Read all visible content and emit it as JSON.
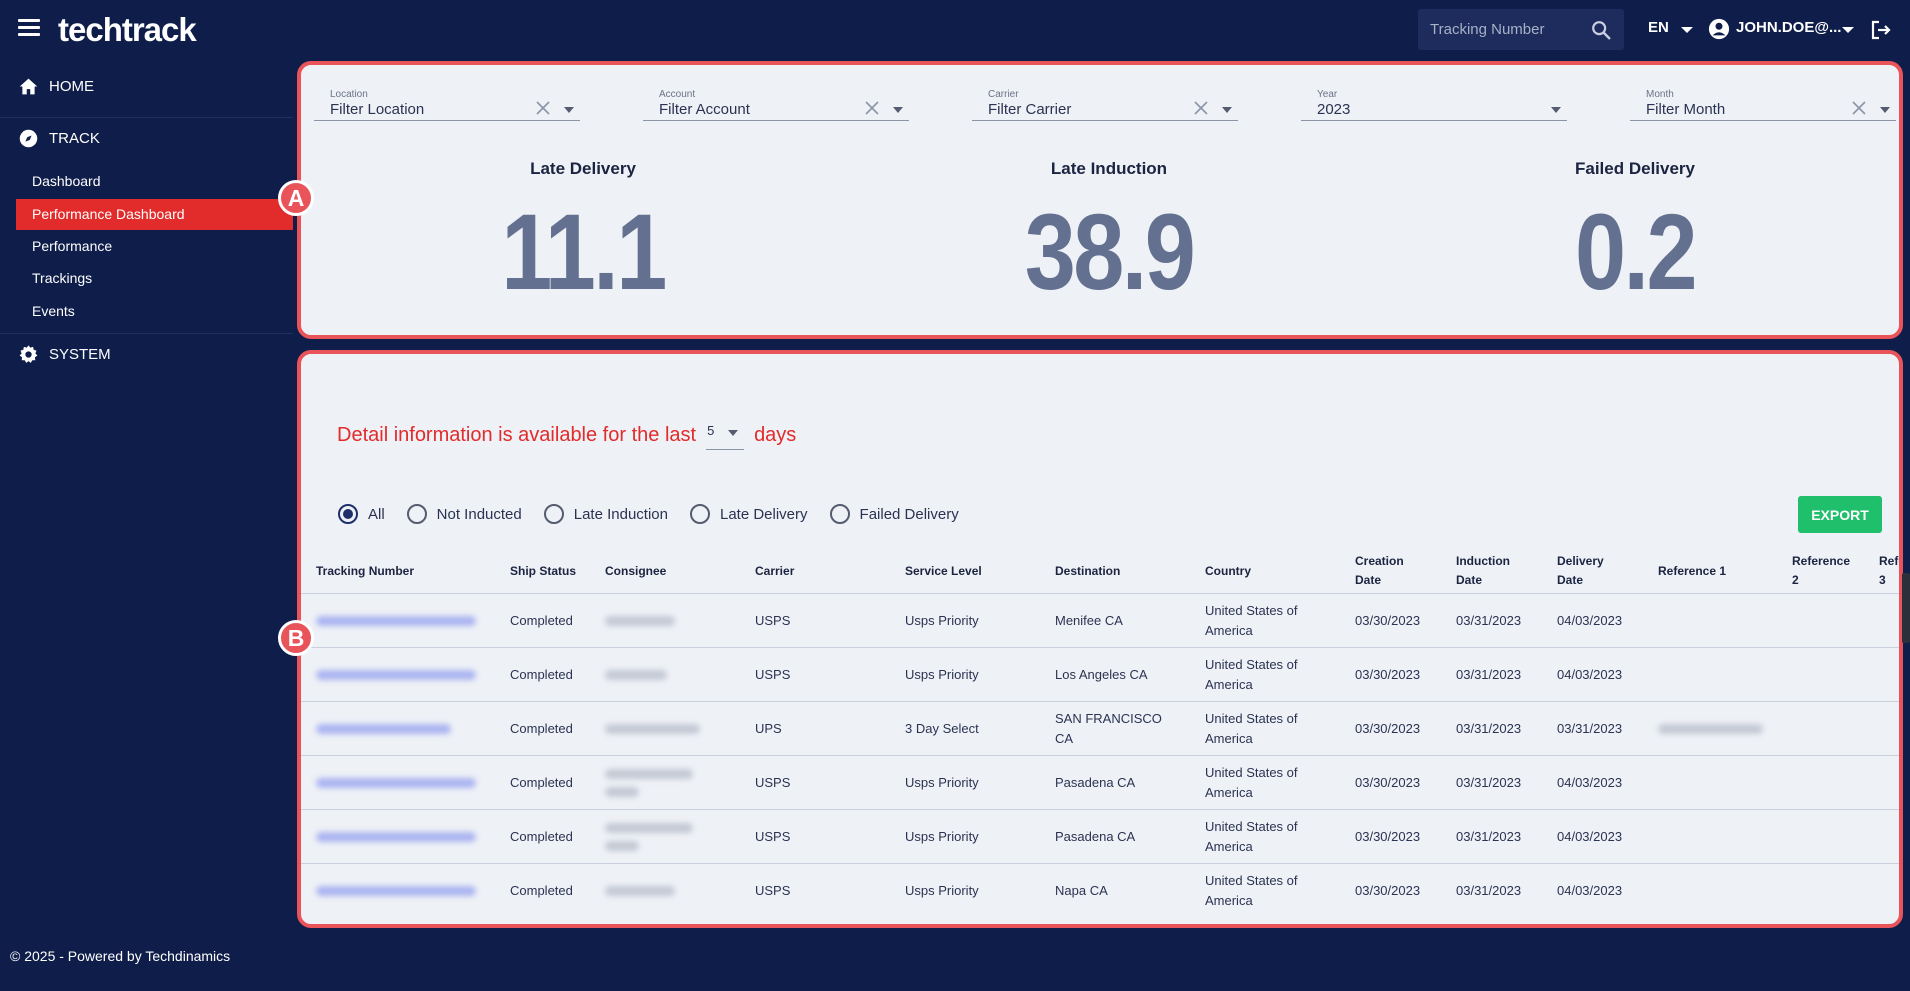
{
  "app": {
    "logo": "techtrack"
  },
  "header": {
    "search_placeholder": "Tracking Number",
    "language": "EN",
    "user": "JOHN.DOE@..."
  },
  "sidebar": {
    "home": "HOME",
    "track": "TRACK",
    "items": [
      {
        "label": "Dashboard"
      },
      {
        "label": "Performance Dashboard",
        "active": true
      },
      {
        "label": "Performance"
      },
      {
        "label": "Trackings"
      },
      {
        "label": "Events"
      }
    ],
    "system": "SYSTEM"
  },
  "markers": {
    "a": "A",
    "b": "B"
  },
  "filters": [
    {
      "label": "Location",
      "value": "Filter Location"
    },
    {
      "label": "Account",
      "value": "Filter Account"
    },
    {
      "label": "Carrier",
      "value": "Filter Carrier"
    },
    {
      "label": "Year",
      "value": "2023"
    },
    {
      "label": "Month",
      "value": "Filter Month"
    }
  ],
  "kpis": [
    {
      "title": "Late Delivery",
      "value": "11.1"
    },
    {
      "title": "Late Induction",
      "value": "38.9"
    },
    {
      "title": "Failed Delivery",
      "value": "0.2"
    }
  ],
  "detail": {
    "prefix": "Detail information is available for the last",
    "days": "5",
    "suffix": "days"
  },
  "radios": [
    {
      "label": "All",
      "checked": true
    },
    {
      "label": "Not Inducted"
    },
    {
      "label": "Late Induction"
    },
    {
      "label": "Late Delivery"
    },
    {
      "label": "Failed Delivery"
    }
  ],
  "export_label": "EXPORT",
  "table": {
    "headers": [
      {
        "line1": "Tracking Number",
        "line2": ""
      },
      {
        "line1": "Ship Status",
        "line2": ""
      },
      {
        "line1": "Consignee",
        "line2": ""
      },
      {
        "line1": "Carrier",
        "line2": ""
      },
      {
        "line1": "Service Level",
        "line2": ""
      },
      {
        "line1": "Destination",
        "line2": ""
      },
      {
        "line1": "Country",
        "line2": ""
      },
      {
        "line1": "Creation",
        "line2": "Date"
      },
      {
        "line1": "Induction",
        "line2": "Date"
      },
      {
        "line1": "Delivery",
        "line2": "Date"
      },
      {
        "line1": "Reference 1",
        "line2": ""
      },
      {
        "line1": "Reference",
        "line2": "2"
      },
      {
        "line1": "Refe",
        "line2": "3"
      }
    ],
    "rows": [
      {
        "status": "Completed",
        "carrier": "USPS",
        "service": "Usps Priority",
        "dest1": "Menifee CA",
        "dest2": "",
        "country1": "United States of",
        "country2": "America",
        "created": "03/30/2023",
        "inducted": "03/31/2023",
        "delivered": "04/03/2023"
      },
      {
        "status": "Completed",
        "carrier": "USPS",
        "service": "Usps Priority",
        "dest1": "Los Angeles CA",
        "dest2": "",
        "country1": "United States of",
        "country2": "America",
        "created": "03/30/2023",
        "inducted": "03/31/2023",
        "delivered": "04/03/2023"
      },
      {
        "status": "Completed",
        "carrier": "UPS",
        "service": "3 Day Select",
        "dest1": "SAN FRANCISCO",
        "dest2": "CA",
        "country1": "United States of",
        "country2": "America",
        "created": "03/30/2023",
        "inducted": "03/31/2023",
        "delivered": "03/31/2023"
      },
      {
        "status": "Completed",
        "carrier": "USPS",
        "service": "Usps Priority",
        "dest1": "Pasadena CA",
        "dest2": "",
        "country1": "United States of",
        "country2": "America",
        "created": "03/30/2023",
        "inducted": "03/31/2023",
        "delivered": "04/03/2023"
      },
      {
        "status": "Completed",
        "carrier": "USPS",
        "service": "Usps Priority",
        "dest1": "Pasadena CA",
        "dest2": "",
        "country1": "United States of",
        "country2": "America",
        "created": "03/30/2023",
        "inducted": "03/31/2023",
        "delivered": "04/03/2023"
      },
      {
        "status": "Completed",
        "carrier": "USPS",
        "service": "Usps Priority",
        "dest1": "Napa CA",
        "dest2": "",
        "country1": "United States of",
        "country2": "America",
        "created": "03/30/2023",
        "inducted": "03/31/2023",
        "delivered": "04/03/2023"
      }
    ]
  },
  "footer": "© 2025 - Powered by Techdinamics",
  "colors": {
    "navy": "#0e1d4a",
    "active_red": "#e22b2b",
    "panel_border": "#e8545a",
    "panel_bg": "#eef1f6",
    "kpi_value": "#637090",
    "export_green": "#1fbf6b"
  }
}
